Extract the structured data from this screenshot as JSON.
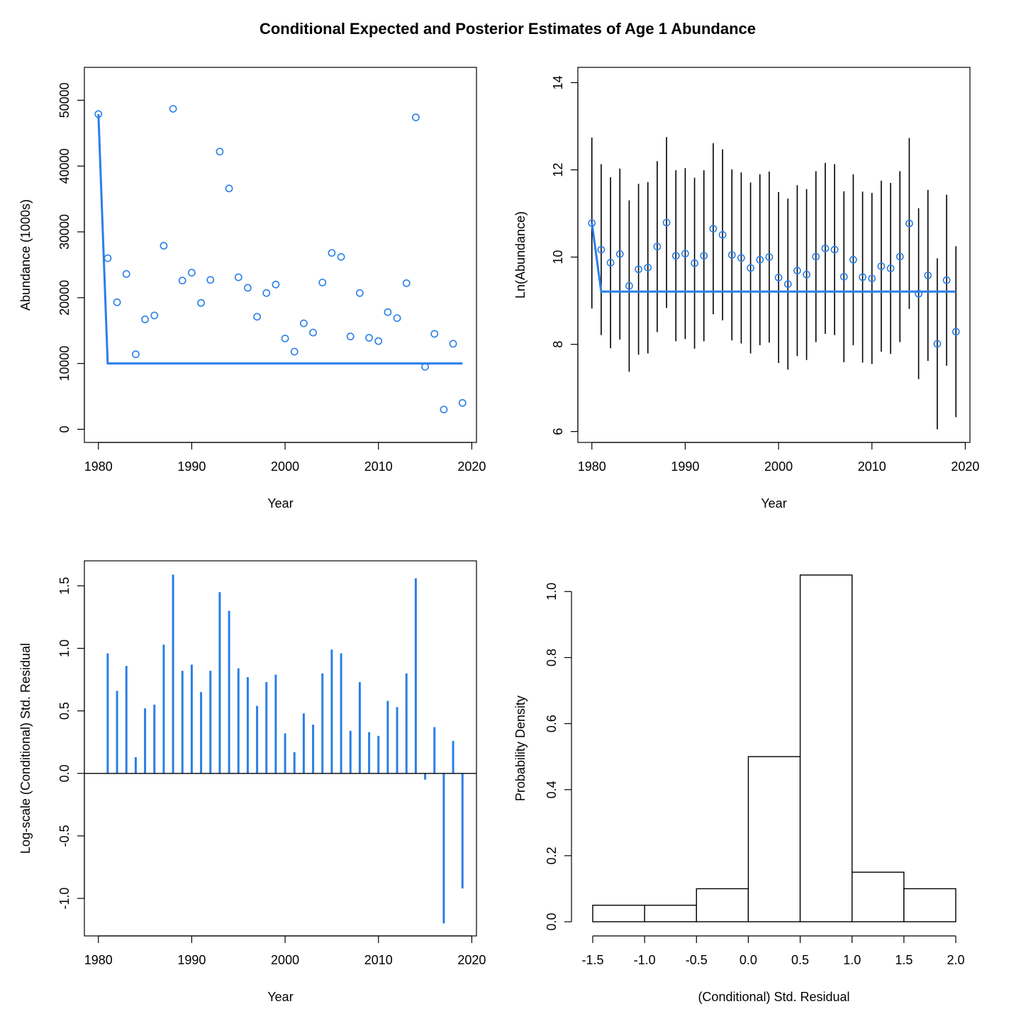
{
  "figure": {
    "title": "Conditional Expected and Posterior Estimates of Age 1 Abundance",
    "colors": {
      "series": "#2A7FE8",
      "ink": "#000000"
    }
  },
  "chart_data": [
    {
      "type": "scatter",
      "id": "abundance",
      "xlabel": "Year",
      "ylabel": "Abundance (1000s)",
      "xlim": [
        1978.5,
        2020.5
      ],
      "ylim": [
        -2000,
        55000
      ],
      "xticks": [
        1980,
        1990,
        2000,
        2010,
        2020
      ],
      "yticks": [
        0,
        10000,
        20000,
        30000,
        40000,
        50000
      ],
      "x": [
        1980,
        1981,
        1982,
        1983,
        1984,
        1985,
        1986,
        1987,
        1988,
        1989,
        1990,
        1991,
        1992,
        1993,
        1994,
        1995,
        1996,
        1997,
        1998,
        1999,
        2000,
        2001,
        2002,
        2003,
        2004,
        2005,
        2006,
        2007,
        2008,
        2009,
        2010,
        2011,
        2012,
        2013,
        2014,
        2015,
        2016,
        2017,
        2018,
        2019
      ],
      "points": [
        47900,
        26000,
        19300,
        23600,
        11400,
        16700,
        17300,
        27900,
        48700,
        22600,
        23800,
        19200,
        22700,
        42200,
        36600,
        23100,
        21500,
        17100,
        20700,
        22000,
        13800,
        11800,
        16100,
        14700,
        22300,
        26800,
        26200,
        14100,
        20700,
        13900,
        13400,
        17800,
        16900,
        22200,
        47400,
        9500,
        14500,
        3000,
        13000,
        4000
      ],
      "line": [
        47900,
        10000,
        10000,
        10000,
        10000,
        10000,
        10000,
        10000,
        10000,
        10000,
        10000,
        10000,
        10000,
        10000,
        10000,
        10000,
        10000,
        10000,
        10000,
        10000,
        10000,
        10000,
        10000,
        10000,
        10000,
        10000,
        10000,
        10000,
        10000,
        10000,
        10000,
        10000,
        10000,
        10000,
        10000,
        10000,
        10000,
        10000,
        10000,
        10000
      ]
    },
    {
      "type": "scatter",
      "id": "ln_abundance",
      "xlabel": "Year",
      "ylabel": "Ln(Abundance)",
      "xlim": [
        1978.5,
        2020.5
      ],
      "ylim": [
        5.75,
        14.35
      ],
      "xticks": [
        1980,
        1990,
        2000,
        2010,
        2020
      ],
      "yticks": [
        6,
        8,
        10,
        12,
        14
      ],
      "x": [
        1980,
        1981,
        1982,
        1983,
        1984,
        1985,
        1986,
        1987,
        1988,
        1989,
        1990,
        1991,
        1992,
        1993,
        1994,
        1995,
        1996,
        1997,
        1998,
        1999,
        2000,
        2001,
        2002,
        2003,
        2004,
        2005,
        2006,
        2007,
        2008,
        2009,
        2010,
        2011,
        2012,
        2013,
        2014,
        2015,
        2016,
        2017,
        2018,
        2019
      ],
      "points": [
        10.78,
        10.17,
        9.87,
        10.07,
        9.34,
        9.72,
        9.76,
        10.24,
        10.79,
        10.03,
        10.08,
        9.86,
        10.03,
        10.65,
        10.51,
        10.05,
        9.98,
        9.75,
        9.94,
        10.0,
        9.53,
        9.38,
        9.69,
        9.6,
        10.01,
        10.2,
        10.17,
        9.55,
        9.94,
        9.54,
        9.51,
        9.79,
        9.74,
        10.01,
        10.77,
        9.16,
        9.58,
        8.01,
        9.47,
        8.29
      ],
      "lower": [
        8.82,
        8.21,
        7.91,
        8.11,
        7.37,
        7.76,
        7.79,
        8.28,
        8.83,
        8.07,
        8.12,
        7.9,
        8.07,
        8.69,
        8.55,
        8.09,
        8.02,
        7.79,
        7.98,
        8.04,
        7.57,
        7.42,
        7.73,
        7.64,
        8.05,
        8.24,
        8.21,
        7.59,
        7.98,
        7.58,
        7.55,
        7.83,
        7.78,
        8.05,
        8.81,
        7.2,
        7.62,
        6.05,
        7.51,
        6.33
      ],
      "upper": [
        12.74,
        12.13,
        11.83,
        12.03,
        11.3,
        11.68,
        11.72,
        12.2,
        12.75,
        11.99,
        12.04,
        11.82,
        11.99,
        12.61,
        12.47,
        12.01,
        11.94,
        11.71,
        11.9,
        11.96,
        11.49,
        11.34,
        11.65,
        11.56,
        11.97,
        12.16,
        12.13,
        11.51,
        11.9,
        11.5,
        11.47,
        11.75,
        11.7,
        11.97,
        12.73,
        11.12,
        11.54,
        9.97,
        11.43,
        10.25
      ],
      "line": [
        10.78,
        9.21,
        9.21,
        9.21,
        9.21,
        9.21,
        9.21,
        9.21,
        9.21,
        9.21,
        9.21,
        9.21,
        9.21,
        9.21,
        9.21,
        9.21,
        9.21,
        9.21,
        9.21,
        9.21,
        9.21,
        9.21,
        9.21,
        9.21,
        9.21,
        9.21,
        9.21,
        9.21,
        9.21,
        9.21,
        9.21,
        9.21,
        9.21,
        9.21,
        9.21,
        9.21,
        9.21,
        9.21,
        9.21,
        9.21
      ]
    },
    {
      "type": "bar",
      "id": "residuals",
      "xlabel": "Year",
      "ylabel": "Log-scale (Conditional) Std. Residual",
      "xlim": [
        1978.5,
        2020.5
      ],
      "ylim": [
        -1.3,
        1.7
      ],
      "xticks": [
        1980,
        1990,
        2000,
        2010,
        2020
      ],
      "yticks": [
        -1.0,
        -0.5,
        0.0,
        0.5,
        1.0,
        1.5
      ],
      "ytick_labels": [
        "-1.0",
        "-0.5",
        "0.0",
        "0.5",
        "1.0",
        "1.5"
      ],
      "x": [
        1980,
        1981,
        1982,
        1983,
        1984,
        1985,
        1986,
        1987,
        1988,
        1989,
        1990,
        1991,
        1992,
        1993,
        1994,
        1995,
        1996,
        1997,
        1998,
        1999,
        2000,
        2001,
        2002,
        2003,
        2004,
        2005,
        2006,
        2007,
        2008,
        2009,
        2010,
        2011,
        2012,
        2013,
        2014,
        2015,
        2016,
        2017,
        2018,
        2019
      ],
      "values": [
        0,
        0.96,
        0.66,
        0.86,
        0.13,
        0.52,
        0.55,
        1.03,
        1.59,
        0.82,
        0.87,
        0.65,
        0.82,
        1.45,
        1.3,
        0.84,
        0.77,
        0.54,
        0.73,
        0.79,
        0.32,
        0.17,
        0.48,
        0.39,
        0.8,
        0.99,
        0.96,
        0.34,
        0.73,
        0.33,
        0.3,
        0.58,
        0.53,
        0.8,
        1.56,
        -0.05,
        0.37,
        -1.2,
        0.26,
        -0.92
      ]
    },
    {
      "type": "histogram",
      "id": "histogram",
      "xlabel": "(Conditional) Std. Residual",
      "ylabel": "Probability Density",
      "xlim": [
        -1.5,
        2.0
      ],
      "ylim": [
        0,
        1.05
      ],
      "xticks": [
        -1.5,
        -1.0,
        -0.5,
        0.0,
        0.5,
        1.0,
        1.5,
        2.0
      ],
      "xtick_labels": [
        "-1.5",
        "-1.0",
        "-0.5",
        "0.0",
        "0.5",
        "1.0",
        "1.5",
        "2.0"
      ],
      "yticks": [
        0.0,
        0.2,
        0.4,
        0.6,
        0.8,
        1.0
      ],
      "ytick_labels": [
        "0.0",
        "0.2",
        "0.4",
        "0.6",
        "0.8",
        "1.0"
      ],
      "bin_edges": [
        -1.5,
        -1.0,
        -0.5,
        0.0,
        0.5,
        1.0,
        1.5,
        2.0
      ],
      "density": [
        0.05,
        0.05,
        0.1,
        0.5,
        1.05,
        0.15,
        0.1
      ]
    }
  ]
}
